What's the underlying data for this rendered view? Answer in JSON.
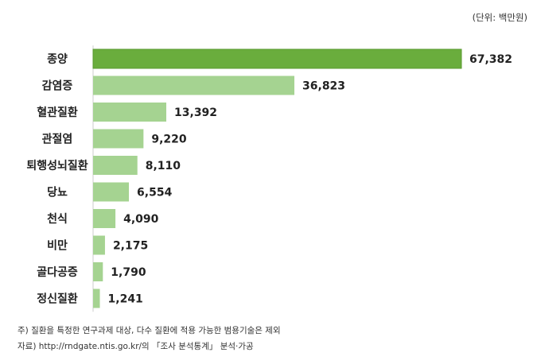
{
  "unit_label": "(단위: 백만원)",
  "notes": {
    "note": "주) 질환을 특정한 연구과제 대상, 다수 질환에 적용 가능한 범용기술은 제외",
    "source": "자료) http://rndgate.ntis.go.kr/의 「조사 분석통계」 분석·가공"
  },
  "colors": {
    "highlight": "#6aad3d",
    "default": "#a5d391",
    "highlight_border": "#5a9a30"
  },
  "chart_data": {
    "type": "bar",
    "orientation": "horizontal",
    "categories": [
      "종양",
      "감염증",
      "혈관질환",
      "관절염",
      "퇴행성뇌질환",
      "당뇨",
      "천식",
      "비만",
      "골다공증",
      "정신질환"
    ],
    "values": [
      67382,
      36823,
      13392,
      9220,
      8110,
      6554,
      4090,
      2175,
      1790,
      1241
    ],
    "value_labels": [
      "67,382",
      "36,823",
      "13,392",
      "9,220",
      "8,110",
      "6,554",
      "4,090",
      "2,175",
      "1,790",
      "1,241"
    ],
    "xlim": [
      0,
      67382
    ],
    "grid": false,
    "legend": "none"
  }
}
